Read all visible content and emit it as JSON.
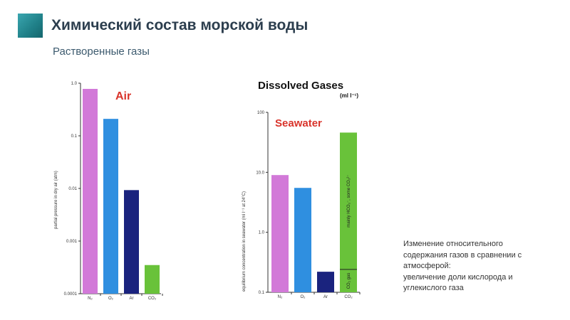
{
  "header": {
    "title": "Химический состав морской воды",
    "subtitle": "Растворенные газы"
  },
  "caption": {
    "lines": [
      "Изменение относительного",
      "содержания газов в сравнении с",
      "атмосферой:",
      "увеличение доли кислорода и",
      "углекислого газа"
    ]
  },
  "figure": {
    "title": "Dissolved Gases",
    "unit": "(ml l⁻¹)"
  },
  "chart_data": [
    {
      "type": "bar",
      "tag": "Air",
      "ylabel": "partial pressure in dry air (atm)",
      "yscale": "log",
      "ylim": [
        0.0001,
        1.0
      ],
      "yticks": [
        "1.0",
        "0.1",
        "0.01",
        "0.001",
        "0.0001"
      ],
      "categories": [
        "N₂",
        "O₂",
        "Ar",
        "CO₂"
      ],
      "values": [
        0.78,
        0.21,
        0.0093,
        0.00035
      ],
      "colors": [
        "#d279d8",
        "#2f8fe0",
        "#1a237e",
        "#69c23a"
      ]
    },
    {
      "type": "bar",
      "tag": "Seawater",
      "ylabel": "equilibrium concentration in seawater (ml l⁻¹ at 24°C)",
      "yscale": "log",
      "ylim": [
        0.1,
        100
      ],
      "yticks": [
        "100",
        "10.0",
        "1.0",
        "0.1"
      ],
      "categories": [
        "N₂",
        "O₂",
        "Ar",
        "CO₂"
      ],
      "values": [
        9.0,
        5.5,
        0.22,
        46
      ],
      "colors": [
        "#d279d8",
        "#2f8fe0",
        "#1a237e",
        "#69c23a"
      ],
      "co2_split": 0.24,
      "co2_labels": [
        "mainly HCO₃⁻, some CO₃²⁻",
        "CO₂ gas"
      ]
    }
  ]
}
